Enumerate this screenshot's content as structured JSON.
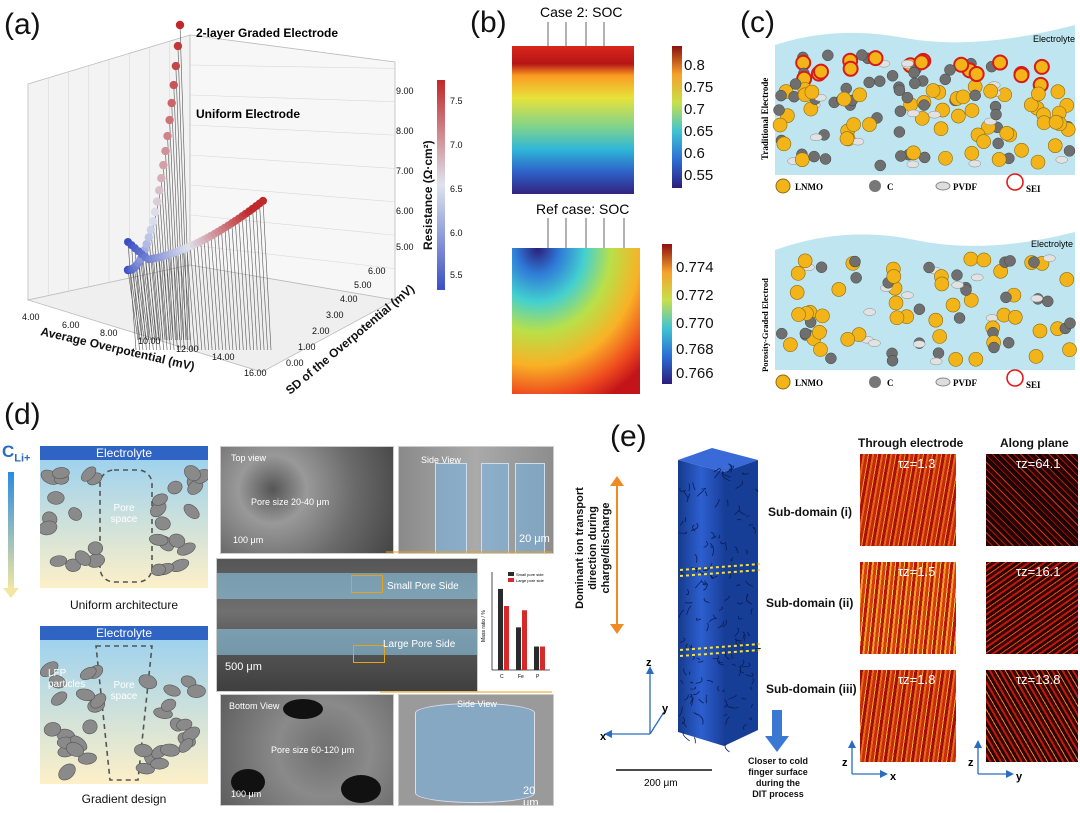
{
  "panel_a": {
    "label": "(a)",
    "annotation_top": "2-layer Graded Electrode",
    "annotation_mid": "Uniform Electrode",
    "z_title": "Resistance (Ω·cm²)",
    "x_title": "Average Overpotential (mV)",
    "y_title": "SD of the Overpotential (mV)",
    "z_ticks": [
      "9.00",
      "8.00",
      "7.00",
      "6.00",
      "5.00"
    ],
    "x_ticks": [
      "4.00",
      "6.00",
      "8.00",
      "10.00",
      "12.00",
      "14.00",
      "16.00"
    ],
    "y_ticks": [
      "0.00",
      "1.00",
      "2.00",
      "3.00",
      "4.00",
      "5.00",
      "6.00"
    ],
    "cbar_ticks": [
      "7.5",
      "7.0",
      "6.5",
      "6.0",
      "5.5"
    ],
    "colors": {
      "low": "#3b4fc4",
      "mid": "#c9d3e8",
      "high": "#c0282a"
    }
  },
  "panel_b": {
    "label": "(b)",
    "top_title": "Case 2: SOC",
    "top_ticks": [
      "0.8",
      "0.75",
      "0.7",
      "0.65",
      "0.6",
      "0.55"
    ],
    "bottom_title": "Ref case: SOC",
    "bottom_ticks": [
      "0.774",
      "0.772",
      "0.770",
      "0.768",
      "0.766"
    ]
  },
  "panel_c": {
    "label": "(c)",
    "top_side": "Traditional Electrode",
    "top_electrolyte": "Electrolyte",
    "bottom_side": "Porosity-Graded Electrod",
    "bottom_electrolyte": "Electrolyte",
    "legend": [
      "LNMO",
      "C",
      "PVDF",
      "SEI"
    ]
  },
  "panel_d": {
    "label": "(d)",
    "c_label": "C",
    "c_sub": "Li+",
    "top_electrolyte": "Electrolyte",
    "top_pore": "Pore space",
    "top_caption": "Uniform architecture",
    "bottom_electrolyte": "Electrolyte",
    "bottom_particles": "LFP particles",
    "bottom_pore": "Pore space",
    "bottom_caption": "Gradient design",
    "sem_top_left": {
      "title": "Top view",
      "text": "Pore size 20-40 μm",
      "scale": "100 μm"
    },
    "sem_top_right": {
      "title": "Side View",
      "scale": "20 μm"
    },
    "sem_mid": {
      "small": "Small Pore Side",
      "large": "Large Pore Side",
      "scale": "500 μm"
    },
    "sem_bottom_left": {
      "title": "Bottom View",
      "text": "Pore size 60-120 μm",
      "scale": "100 μm"
    },
    "sem_bottom_right": {
      "title": "Side View",
      "scale": "20 μm"
    },
    "inset_chart": {
      "legend": [
        "Small pore side",
        "Large pore side"
      ],
      "ylabel": "Mass ratio / %",
      "categories": [
        "C",
        "Fe",
        "P"
      ]
    }
  },
  "panel_e": {
    "label": "(e)",
    "transport_text": "Dominant ion transport direction during charge/discharge",
    "sub_i": "Sub-domain (i)",
    "sub_ii": "Sub-domain (ii)",
    "sub_iii": "Sub-domain (iii)",
    "col_through": "Through electrode",
    "col_along": "Along plane",
    "tau_through": [
      "τz=1.3",
      "τz=1.5",
      "τz=1.8"
    ],
    "tau_along": [
      "τz=64.1",
      "τz=16.1",
      "τz=13.8"
    ],
    "scale": "200 μm",
    "cold_text": "Closer to cold finger surface during the DIT process",
    "axes": {
      "x": "x",
      "y": "y",
      "z": "z"
    }
  },
  "chart_data": [
    {
      "type": "scatter",
      "title": "",
      "series": [
        {
          "name": "2-layer Graded Electrode"
        },
        {
          "name": "Uniform Electrode"
        }
      ],
      "xlabel": "Average Overpotential (mV)",
      "ylabel": "SD of the Overpotential (mV)",
      "zlabel": "Resistance (Ω·cm²)",
      "xlim": [
        4,
        16
      ],
      "ylim": [
        0,
        6
      ],
      "zlim": [
        5,
        9
      ]
    },
    {
      "type": "bar",
      "categories": [
        "C",
        "Fe",
        "P"
      ],
      "series": [
        {
          "name": "Small pore side",
          "values": [
            38,
            20,
            11
          ]
        },
        {
          "name": "Large pore side",
          "values": [
            30,
            28,
            11
          ]
        }
      ],
      "ylabel": "Mass ratio / %",
      "ylim": [
        0,
        45
      ]
    }
  ]
}
